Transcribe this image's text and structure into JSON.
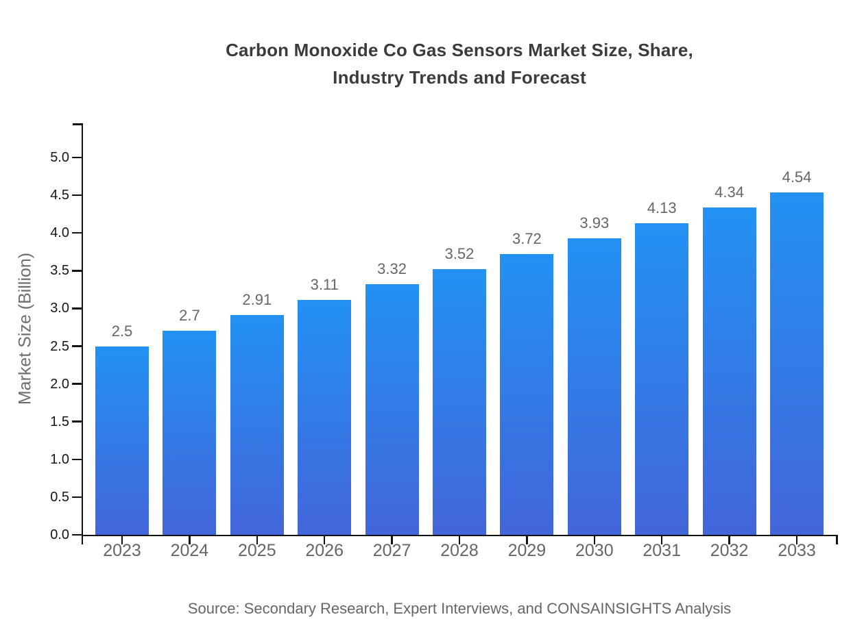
{
  "title": {
    "line1": "Carbon Monoxide Co Gas Sensors Market Size, Share,",
    "line2": "Industry Trends and Forecast"
  },
  "source": "Source: Secondary Research, Expert Interviews, and CONSAINSIGHTS Analysis",
  "colors": {
    "background": "#ffffff",
    "bar_gradient_top": "#2391f3",
    "bar_gradient_bottom": "#4365da",
    "axis": "#111111",
    "title_text": "#3b3b3b",
    "y_axis_title": "#6e6e6e",
    "y_tick_label": "#161616",
    "x_tick_label": "#666666",
    "value_label": "#666666",
    "source_text": "#666666"
  },
  "chart_data": {
    "type": "bar",
    "title": "Carbon Monoxide Co Gas Sensors Market Size, Share, Industry Trends and Forecast",
    "categories": [
      "2023",
      "2024",
      "2025",
      "2026",
      "2027",
      "2028",
      "2029",
      "2030",
      "2031",
      "2032",
      "2033"
    ],
    "values": [
      2.5,
      2.7,
      2.91,
      3.11,
      3.32,
      3.52,
      3.72,
      3.93,
      4.13,
      4.34,
      4.54
    ],
    "value_labels": [
      "2.5",
      "2.7",
      "2.91",
      "3.11",
      "3.32",
      "3.52",
      "3.72",
      "3.93",
      "4.13",
      "4.34",
      "4.54"
    ],
    "xlabel": "",
    "ylabel": "Market Size (Billion)",
    "ylim": [
      0,
      5.45
    ],
    "yticks": [
      "0.0",
      "0.5",
      "1.0",
      "1.5",
      "2.0",
      "2.5",
      "3.0",
      "3.5",
      "4.0",
      "4.5",
      "5.0"
    ],
    "grid": false,
    "legend": false
  }
}
